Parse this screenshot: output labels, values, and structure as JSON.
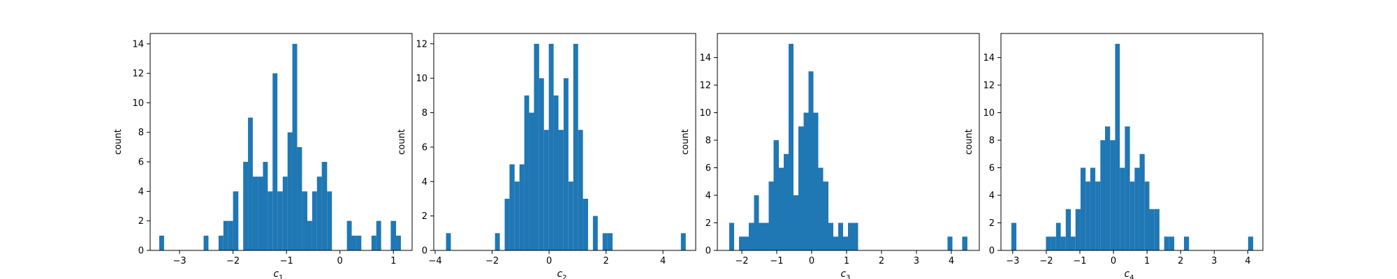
{
  "colors": {
    "bar": "#1f77b4",
    "axis": "#000000",
    "background": "#ffffff"
  },
  "chart_data": [
    {
      "type": "bar",
      "subtype": "histogram",
      "xlabel_base": "c",
      "xlabel_sub": "1",
      "ylabel": "count",
      "xlim": [
        -3.55,
        1.35
      ],
      "ylim": [
        0,
        14.7
      ],
      "xticks": [
        -3,
        -2,
        -1,
        0,
        1
      ],
      "xtick_labels": [
        "−3",
        "−2",
        "−1",
        "0",
        "1"
      ],
      "yticks": [
        0,
        2,
        4,
        6,
        8,
        10,
        12,
        14
      ],
      "bins": [
        {
          "x0": -3.38,
          "x1": -3.29,
          "count": 1
        },
        {
          "x0": -2.55,
          "x1": -2.46,
          "count": 1
        },
        {
          "x0": -2.27,
          "x1": -2.18,
          "count": 1
        },
        {
          "x0": -2.18,
          "x1": -2.09,
          "count": 2
        },
        {
          "x0": -2.09,
          "x1": -2.0,
          "count": 2
        },
        {
          "x0": -2.0,
          "x1": -1.9,
          "count": 4
        },
        {
          "x0": -1.81,
          "x1": -1.72,
          "count": 6
        },
        {
          "x0": -1.72,
          "x1": -1.63,
          "count": 9
        },
        {
          "x0": -1.63,
          "x1": -1.53,
          "count": 5
        },
        {
          "x0": -1.53,
          "x1": -1.44,
          "count": 5
        },
        {
          "x0": -1.44,
          "x1": -1.35,
          "count": 6
        },
        {
          "x0": -1.35,
          "x1": -1.26,
          "count": 4
        },
        {
          "x0": -1.26,
          "x1": -1.17,
          "count": 12
        },
        {
          "x0": -1.17,
          "x1": -1.07,
          "count": 4
        },
        {
          "x0": -1.07,
          "x1": -0.98,
          "count": 5
        },
        {
          "x0": -0.98,
          "x1": -0.89,
          "count": 8
        },
        {
          "x0": -0.89,
          "x1": -0.8,
          "count": 14
        },
        {
          "x0": -0.8,
          "x1": -0.71,
          "count": 7
        },
        {
          "x0": -0.71,
          "x1": -0.61,
          "count": 4
        },
        {
          "x0": -0.61,
          "x1": -0.52,
          "count": 2
        },
        {
          "x0": -0.52,
          "x1": -0.43,
          "count": 4
        },
        {
          "x0": -0.43,
          "x1": -0.34,
          "count": 5
        },
        {
          "x0": -0.34,
          "x1": -0.24,
          "count": 6
        },
        {
          "x0": -0.24,
          "x1": -0.15,
          "count": 4
        },
        {
          "x0": 0.13,
          "x1": 0.22,
          "count": 2
        },
        {
          "x0": 0.22,
          "x1": 0.31,
          "count": 1
        },
        {
          "x0": 0.31,
          "x1": 0.4,
          "count": 1
        },
        {
          "x0": 0.59,
          "x1": 0.68,
          "count": 1
        },
        {
          "x0": 0.68,
          "x1": 0.77,
          "count": 2
        },
        {
          "x0": 0.95,
          "x1": 1.05,
          "count": 2
        },
        {
          "x0": 1.05,
          "x1": 1.14,
          "count": 1
        }
      ]
    },
    {
      "type": "bar",
      "subtype": "histogram",
      "xlabel_base": "c",
      "xlabel_sub": "2",
      "ylabel": "count",
      "xlim": [
        -4.05,
        5.15
      ],
      "ylim": [
        0,
        12.6
      ],
      "xticks": [
        -4,
        -2,
        0,
        2,
        4
      ],
      "xtick_labels": [
        "−4",
        "−2",
        "0",
        "2",
        "4"
      ],
      "yticks": [
        0,
        2,
        4,
        6,
        8,
        10,
        12
      ],
      "bins": [
        {
          "x0": -3.62,
          "x1": -3.45,
          "count": 1
        },
        {
          "x0": -1.9,
          "x1": -1.73,
          "count": 1
        },
        {
          "x0": -1.56,
          "x1": -1.39,
          "count": 3
        },
        {
          "x0": -1.39,
          "x1": -1.21,
          "count": 5
        },
        {
          "x0": -1.21,
          "x1": -1.04,
          "count": 4
        },
        {
          "x0": -1.04,
          "x1": -0.87,
          "count": 5
        },
        {
          "x0": -0.87,
          "x1": -0.7,
          "count": 9
        },
        {
          "x0": -0.7,
          "x1": -0.53,
          "count": 8
        },
        {
          "x0": -0.53,
          "x1": -0.35,
          "count": 12
        },
        {
          "x0": -0.35,
          "x1": -0.18,
          "count": 10
        },
        {
          "x0": -0.18,
          "x1": -0.01,
          "count": 7
        },
        {
          "x0": -0.01,
          "x1": 0.16,
          "count": 12
        },
        {
          "x0": 0.16,
          "x1": 0.33,
          "count": 9
        },
        {
          "x0": 0.33,
          "x1": 0.51,
          "count": 7
        },
        {
          "x0": 0.51,
          "x1": 0.68,
          "count": 10
        },
        {
          "x0": 0.68,
          "x1": 0.85,
          "count": 4
        },
        {
          "x0": 0.85,
          "x1": 1.02,
          "count": 12
        },
        {
          "x0": 1.02,
          "x1": 1.19,
          "count": 7
        },
        {
          "x0": 1.19,
          "x1": 1.37,
          "count": 3
        },
        {
          "x0": 1.54,
          "x1": 1.71,
          "count": 2
        },
        {
          "x0": 1.88,
          "x1": 2.05,
          "count": 1
        },
        {
          "x0": 2.05,
          "x1": 2.23,
          "count": 1
        },
        {
          "x0": 4.63,
          "x1": 4.8,
          "count": 1
        }
      ]
    },
    {
      "type": "bar",
      "subtype": "histogram",
      "xlabel_base": "c",
      "xlabel_sub": "3",
      "ylabel": "count",
      "xlim": [
        -2.7,
        4.8
      ],
      "ylim": [
        0,
        15.75
      ],
      "xticks": [
        -2,
        -1,
        0,
        1,
        2,
        3,
        4
      ],
      "xtick_labels": [
        "−2",
        "−1",
        "0",
        "1",
        "2",
        "3",
        "4"
      ],
      "yticks": [
        0,
        2,
        4,
        6,
        8,
        10,
        12,
        14
      ],
      "bins": [
        {
          "x0": -2.36,
          "x1": -2.22,
          "count": 2
        },
        {
          "x0": -2.08,
          "x1": -1.94,
          "count": 1
        },
        {
          "x0": -1.94,
          "x1": -1.8,
          "count": 1
        },
        {
          "x0": -1.8,
          "x1": -1.65,
          "count": 2
        },
        {
          "x0": -1.65,
          "x1": -1.51,
          "count": 4
        },
        {
          "x0": -1.51,
          "x1": -1.37,
          "count": 2
        },
        {
          "x0": -1.37,
          "x1": -1.23,
          "count": 2
        },
        {
          "x0": -1.23,
          "x1": -1.09,
          "count": 5
        },
        {
          "x0": -1.09,
          "x1": -0.94,
          "count": 8
        },
        {
          "x0": -0.94,
          "x1": -0.8,
          "count": 6
        },
        {
          "x0": -0.8,
          "x1": -0.66,
          "count": 7
        },
        {
          "x0": -0.66,
          "x1": -0.52,
          "count": 15
        },
        {
          "x0": -0.52,
          "x1": -0.38,
          "count": 4
        },
        {
          "x0": -0.38,
          "x1": -0.23,
          "count": 9
        },
        {
          "x0": -0.23,
          "x1": -0.09,
          "count": 10
        },
        {
          "x0": -0.09,
          "x1": 0.05,
          "count": 13
        },
        {
          "x0": 0.05,
          "x1": 0.19,
          "count": 10
        },
        {
          "x0": 0.19,
          "x1": 0.33,
          "count": 6
        },
        {
          "x0": 0.33,
          "x1": 0.48,
          "count": 5
        },
        {
          "x0": 0.48,
          "x1": 0.62,
          "count": 2
        },
        {
          "x0": 0.62,
          "x1": 0.76,
          "count": 1
        },
        {
          "x0": 0.76,
          "x1": 0.9,
          "count": 2
        },
        {
          "x0": 0.9,
          "x1": 1.04,
          "count": 1
        },
        {
          "x0": 1.04,
          "x1": 1.19,
          "count": 2
        },
        {
          "x0": 1.19,
          "x1": 1.33,
          "count": 2
        },
        {
          "x0": 3.89,
          "x1": 4.03,
          "count": 1
        },
        {
          "x0": 4.31,
          "x1": 4.46,
          "count": 1
        }
      ]
    },
    {
      "type": "bar",
      "subtype": "histogram",
      "xlabel_base": "c",
      "xlabel_sub": "4",
      "ylabel": "count",
      "xlim": [
        -3.35,
        4.45
      ],
      "ylim": [
        0,
        15.75
      ],
      "xticks": [
        -3,
        -2,
        -1,
        0,
        1,
        2,
        3,
        4
      ],
      "xtick_labels": [
        "−3",
        "−2",
        "−1",
        "0",
        "1",
        "2",
        "3",
        "4"
      ],
      "yticks": [
        0,
        2,
        4,
        6,
        8,
        10,
        12,
        14
      ],
      "bins": [
        {
          "x0": -3.04,
          "x1": -2.89,
          "count": 2
        },
        {
          "x0": -2.01,
          "x1": -1.86,
          "count": 1
        },
        {
          "x0": -1.86,
          "x1": -1.71,
          "count": 1
        },
        {
          "x0": -1.71,
          "x1": -1.57,
          "count": 2
        },
        {
          "x0": -1.57,
          "x1": -1.42,
          "count": 1
        },
        {
          "x0": -1.42,
          "x1": -1.27,
          "count": 3
        },
        {
          "x0": -1.27,
          "x1": -1.13,
          "count": 1
        },
        {
          "x0": -1.13,
          "x1": -0.98,
          "count": 3
        },
        {
          "x0": -0.98,
          "x1": -0.83,
          "count": 6
        },
        {
          "x0": -0.83,
          "x1": -0.69,
          "count": 5
        },
        {
          "x0": -0.69,
          "x1": -0.54,
          "count": 6
        },
        {
          "x0": -0.54,
          "x1": -0.39,
          "count": 5
        },
        {
          "x0": -0.39,
          "x1": -0.25,
          "count": 8
        },
        {
          "x0": -0.25,
          "x1": -0.1,
          "count": 9
        },
        {
          "x0": -0.1,
          "x1": 0.05,
          "count": 8
        },
        {
          "x0": 0.05,
          "x1": 0.19,
          "count": 15
        },
        {
          "x0": 0.19,
          "x1": 0.34,
          "count": 6
        },
        {
          "x0": 0.34,
          "x1": 0.49,
          "count": 9
        },
        {
          "x0": 0.49,
          "x1": 0.63,
          "count": 5
        },
        {
          "x0": 0.63,
          "x1": 0.78,
          "count": 6
        },
        {
          "x0": 0.78,
          "x1": 0.93,
          "count": 7
        },
        {
          "x0": 0.93,
          "x1": 1.07,
          "count": 5
        },
        {
          "x0": 1.07,
          "x1": 1.22,
          "count": 3
        },
        {
          "x0": 1.22,
          "x1": 1.37,
          "count": 3
        },
        {
          "x0": 1.51,
          "x1": 1.66,
          "count": 1
        },
        {
          "x0": 1.66,
          "x1": 1.81,
          "count": 1
        },
        {
          "x0": 2.1,
          "x1": 2.25,
          "count": 1
        },
        {
          "x0": 4.01,
          "x1": 4.16,
          "count": 1
        }
      ]
    }
  ]
}
